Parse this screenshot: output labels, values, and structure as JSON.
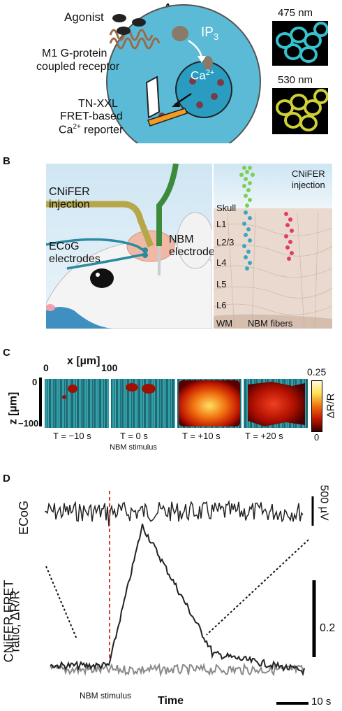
{
  "panel_a": {
    "letter": "A",
    "agonist_label": "Agonist",
    "receptor_line1": "M1 G-protein",
    "receptor_line2": "coupled receptor",
    "ip3_base": "IP",
    "ip3_sub": "3",
    "ca_label": "Ca",
    "ca_sup": "2+",
    "reporter_line1": "TN-XXL",
    "reporter_line2": "FRET-based",
    "reporter_line3_base": "Ca",
    "reporter_line3_sup": "2+",
    "reporter_line3_tail": " reporter",
    "wavelength_cyan": "475 nm",
    "wavelength_yellow": "530 nm"
  },
  "panel_b": {
    "letter": "B",
    "left_labels": {
      "cnifer_line1": "CNiFER",
      "cnifer_line2": "injection",
      "ecog_line1": "ECoG",
      "ecog_line2": "electrodes",
      "nbm_line1": "NBM",
      "nbm_line2": "electrode"
    },
    "right_labels": {
      "cnifer_line1": "CNiFER",
      "cnifer_line2": "injection",
      "layers": [
        "Skull",
        "L1",
        "L2/3",
        "L4",
        "L5",
        "L6",
        "WM"
      ],
      "nbm_fibers": "NBM fibers"
    }
  },
  "panel_c": {
    "letter": "C",
    "x_axis_label": "x [µm]",
    "x_tick_0": "0",
    "x_tick_100": "100",
    "z_axis_label": "z [µm]",
    "z_tick_0": "0",
    "z_tick_minus100": "−100",
    "colorbar_max": "0.25",
    "colorbar_min": "0",
    "colorbar_label": "ΔR/R",
    "frames": [
      {
        "time": "T = −10 s",
        "response": 0.05
      },
      {
        "time": "T = 0 s",
        "response": 0.12
      },
      {
        "time": "T = +10 s",
        "response": 0.9
      },
      {
        "time": "T = +20 s",
        "response": 0.55
      }
    ],
    "stimulus_note": "NBM stimulus",
    "colors": {
      "cyan": "#2fb3b8",
      "hot_low": "#6a0000",
      "hot_mid": "#e02000",
      "hot_high": "#ffe060"
    }
  },
  "panel_d": {
    "letter": "D",
    "ecog_label": "ECoG",
    "ecog_scale": "500 µV",
    "fret_label_line1": "CNiFER FRET",
    "fret_label_line2": "ratio, ΔR/R",
    "fret_scale": "0.2",
    "stimulus_label": "NBM stimulus",
    "x_axis_label": "Time",
    "time_scale": "10 s",
    "colors": {
      "trace_black": "#222222",
      "trace_gray": "#8a8a8a",
      "stimulus_line": "#e03a2a"
    }
  }
}
